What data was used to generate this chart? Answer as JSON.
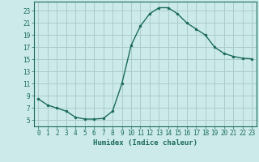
{
  "x": [
    0,
    1,
    2,
    3,
    4,
    5,
    6,
    7,
    8,
    9,
    10,
    11,
    12,
    13,
    14,
    15,
    16,
    17,
    18,
    19,
    20,
    21,
    22,
    23
  ],
  "y": [
    8.5,
    7.5,
    7.0,
    6.5,
    5.5,
    5.2,
    5.2,
    5.3,
    6.5,
    11.0,
    17.3,
    20.5,
    22.5,
    23.5,
    23.5,
    22.5,
    21.0,
    20.0,
    19.0,
    17.0,
    16.0,
    15.5,
    15.2,
    15.1
  ],
  "line_color": "#1a6b5a",
  "marker_color": "#1a6b5a",
  "bg_color": "#cceaea",
  "grid_color": "#aacccc",
  "axis_color": "#1a6b5a",
  "xlabel": "Humidex (Indice chaleur)",
  "ylim": [
    4,
    24.5
  ],
  "xlim": [
    -0.5,
    23.5
  ],
  "yticks": [
    5,
    7,
    9,
    11,
    13,
    15,
    17,
    19,
    21,
    23
  ],
  "xticks": [
    0,
    1,
    2,
    3,
    4,
    5,
    6,
    7,
    8,
    9,
    10,
    11,
    12,
    13,
    14,
    15,
    16,
    17,
    18,
    19,
    20,
    21,
    22,
    23
  ],
  "tick_fontsize": 5.5,
  "xlabel_fontsize": 6.5
}
